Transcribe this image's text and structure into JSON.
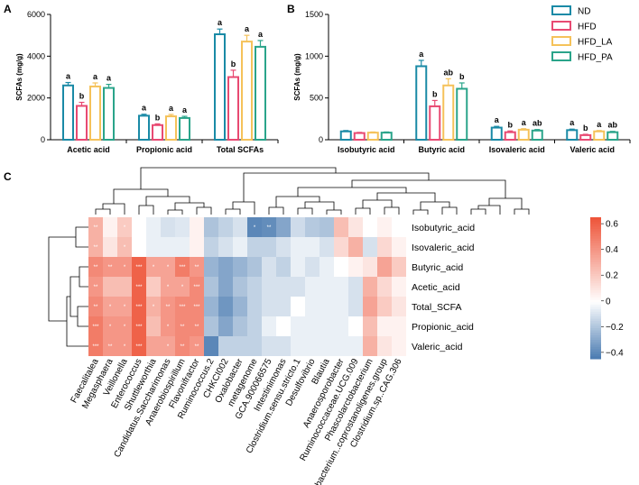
{
  "panels": {
    "a": "A",
    "b": "B",
    "c": "C"
  },
  "legend": {
    "items": [
      {
        "label": "ND",
        "color": "#1a8aa6"
      },
      {
        "label": "HFD",
        "color": "#e84a72"
      },
      {
        "label": "HFD_LA",
        "color": "#f5c25a"
      },
      {
        "label": "HFD_PA",
        "color": "#2aa48a"
      }
    ]
  },
  "chart_data": [
    {
      "id": "A",
      "type": "bar",
      "ylabel": "SCFAs (mg/g)",
      "ylim": [
        0,
        6000
      ],
      "yticks": [
        "0",
        "2000",
        "4000",
        "6000"
      ],
      "yticks_values": [
        0,
        2000,
        4000,
        6000
      ],
      "categories": [
        "Acetic acid",
        "Propionic acid",
        "Total SCFAs"
      ],
      "series": [
        {
          "name": "ND",
          "values": [
            2600,
            1150,
            5050
          ],
          "errors": [
            140,
            70,
            250
          ],
          "letters": [
            "a",
            "a",
            "a"
          ]
        },
        {
          "name": "HFD",
          "values": [
            1620,
            700,
            3000
          ],
          "errors": [
            170,
            60,
            330
          ],
          "letters": [
            "b",
            "b",
            "b"
          ]
        },
        {
          "name": "HFD_LA",
          "values": [
            2550,
            1120,
            4700
          ],
          "errors": [
            170,
            90,
            300
          ],
          "letters": [
            "a",
            "a",
            "a"
          ]
        },
        {
          "name": "HFD_PA",
          "values": [
            2480,
            1040,
            4450
          ],
          "errors": [
            170,
            80,
            300
          ],
          "letters": [
            "a",
            "a",
            "a"
          ]
        }
      ]
    },
    {
      "id": "B",
      "type": "bar",
      "ylabel": "SCFAs (mg/g)",
      "ylim": [
        0,
        1500
      ],
      "yticks": [
        "0",
        "500",
        "1000",
        "1500"
      ],
      "yticks_values": [
        0,
        500,
        1000,
        1500
      ],
      "categories": [
        "Isobutyric acid",
        "Butyric acid",
        "Isovaleric acid",
        "Valeric acid"
      ],
      "series": [
        {
          "name": "ND",
          "values": [
            100,
            880,
            145,
            115
          ],
          "errors": [
            10,
            70,
            15,
            12
          ],
          "letters": [
            "",
            "a",
            "a",
            "a"
          ]
        },
        {
          "name": "HFD",
          "values": [
            80,
            400,
            90,
            55
          ],
          "errors": [
            8,
            70,
            15,
            10
          ],
          "letters": [
            "",
            "b",
            "b",
            "b"
          ]
        },
        {
          "name": "HFD_LA",
          "values": [
            85,
            650,
            120,
            100
          ],
          "errors": [
            8,
            80,
            12,
            10
          ],
          "letters": [
            "",
            "ab",
            "a",
            "a"
          ]
        },
        {
          "name": "HFD_PA",
          "values": [
            85,
            610,
            110,
            90
          ],
          "errors": [
            8,
            70,
            12,
            10
          ],
          "letters": [
            "",
            "b",
            "ab",
            "ab"
          ]
        }
      ]
    },
    {
      "id": "C",
      "type": "heatmap",
      "rows": [
        "Isobutyric_acid",
        "Isovaleric_acid",
        "Butyric_acid",
        "Acetic_acid",
        "Total_SCFA",
        "Propionic_acid",
        "Valeric_acid"
      ],
      "columns": [
        "Faecalitalea",
        "Megasphaera",
        "Veillonella",
        "Enterococcus",
        "Shuttleworthia",
        "Candidatus.Saccharimonas",
        "Anaerobiospirillum",
        "Flavonifractor",
        "Ruminococcus.2",
        "CHKCI002",
        "Oxalobacter",
        "metagenome",
        "GCA.900066575",
        "Intestinimonas",
        "Clostridium.sensu.stricto.1",
        "Desulfovibrio",
        "Blautia",
        "Anaerosporobacter",
        "Ruminococcaceae.UCG.009",
        "Phascolarctobacterium",
        "X.Eubacterium..coprostanoligenes.group",
        "Clostridium.sp..CAG.306"
      ],
      "values": [
        [
          0.3,
          0.05,
          0.2,
          0.0,
          -0.05,
          -0.1,
          -0.08,
          0.05,
          -0.2,
          -0.15,
          -0.1,
          -0.4,
          -0.38,
          -0.3,
          -0.12,
          -0.18,
          -0.2,
          0.25,
          0.1,
          0.0,
          0.05,
          0.0
        ],
        [
          0.3,
          0.1,
          0.25,
          0.0,
          -0.05,
          -0.05,
          -0.05,
          0.05,
          -0.15,
          -0.1,
          -0.05,
          -0.15,
          -0.15,
          -0.1,
          -0.05,
          -0.05,
          -0.1,
          0.15,
          0.3,
          -0.1,
          0.15,
          0.05
        ],
        [
          0.45,
          0.4,
          0.4,
          0.6,
          0.35,
          0.35,
          0.5,
          0.4,
          -0.25,
          -0.3,
          -0.25,
          -0.2,
          -0.1,
          -0.15,
          -0.05,
          -0.1,
          -0.05,
          0.0,
          0.05,
          0.1,
          0.35,
          0.2
        ],
        [
          0.4,
          0.25,
          0.25,
          0.6,
          0.2,
          0.35,
          0.35,
          0.45,
          -0.2,
          -0.3,
          -0.2,
          -0.15,
          -0.1,
          -0.1,
          -0.1,
          -0.05,
          -0.05,
          -0.05,
          -0.1,
          0.3,
          0.15,
          0.05
        ],
        [
          0.45,
          0.35,
          0.35,
          0.6,
          0.3,
          0.4,
          0.45,
          0.45,
          -0.25,
          -0.35,
          -0.25,
          -0.15,
          -0.1,
          -0.1,
          0.0,
          -0.05,
          -0.05,
          -0.05,
          -0.1,
          0.35,
          0.2,
          0.1
        ],
        [
          0.5,
          0.4,
          0.4,
          0.6,
          0.25,
          0.4,
          0.45,
          0.45,
          -0.2,
          -0.3,
          -0.2,
          -0.15,
          -0.05,
          0.0,
          -0.05,
          -0.05,
          -0.05,
          -0.05,
          0.0,
          0.25,
          0.05,
          0.05
        ],
        [
          0.5,
          0.4,
          0.4,
          0.6,
          0.35,
          0.35,
          0.45,
          0.4,
          -0.4,
          -0.15,
          -0.15,
          -0.15,
          -0.1,
          -0.1,
          -0.05,
          -0.05,
          -0.05,
          -0.05,
          -0.05,
          0.3,
          0.1,
          0.05
        ]
      ],
      "stars": [
        [
          "**",
          "",
          "*",
          "",
          "",
          "",
          "",
          "",
          "",
          "",
          "",
          "*",
          "**",
          "",
          "",
          "",
          "",
          "",
          "",
          "",
          "",
          ""
        ],
        [
          "**",
          "",
          "*",
          "",
          "",
          "",
          "",
          "",
          "",
          "",
          "",
          "",
          "",
          "",
          "",
          "",
          "",
          "",
          "",
          "",
          "",
          ""
        ],
        [
          "**",
          "**",
          "*",
          "***",
          "*",
          "*",
          "***",
          "**",
          "",
          "",
          "",
          "",
          "",
          "",
          "",
          "",
          "",
          "",
          "",
          "",
          "",
          ""
        ],
        [
          "**",
          "",
          "",
          "***",
          "",
          "*",
          "*",
          "***",
          "",
          "",
          "",
          "",
          "",
          "",
          "",
          "",
          "",
          "",
          "",
          "",
          "",
          ""
        ],
        [
          "**",
          "*",
          "*",
          "***",
          "*",
          "**",
          "***",
          "***",
          "",
          "",
          "",
          "",
          "",
          "",
          "",
          "",
          "",
          "",
          "",
          "",
          "",
          ""
        ],
        [
          "***",
          "*",
          "*",
          "***",
          "",
          "*",
          "**",
          "**",
          "",
          "",
          "",
          "",
          "",
          "",
          "",
          "",
          "",
          "",
          "",
          "",
          "",
          ""
        ],
        [
          "***",
          "**",
          "*",
          "***",
          "",
          "*",
          "**",
          "**",
          "",
          "",
          "",
          "",
          "",
          "",
          "",
          "",
          "",
          "",
          "",
          "",
          "",
          ""
        ]
      ],
      "color_range": [
        -0.45,
        0.65
      ],
      "colorbar_ticks": [
        0.6,
        0.4,
        0.2,
        0,
        -0.2,
        -0.4
      ],
      "colorbar_labels": [
        "0.6",
        "0.4",
        "0.2",
        "0",
        "−0.2",
        "−0.4"
      ]
    }
  ]
}
